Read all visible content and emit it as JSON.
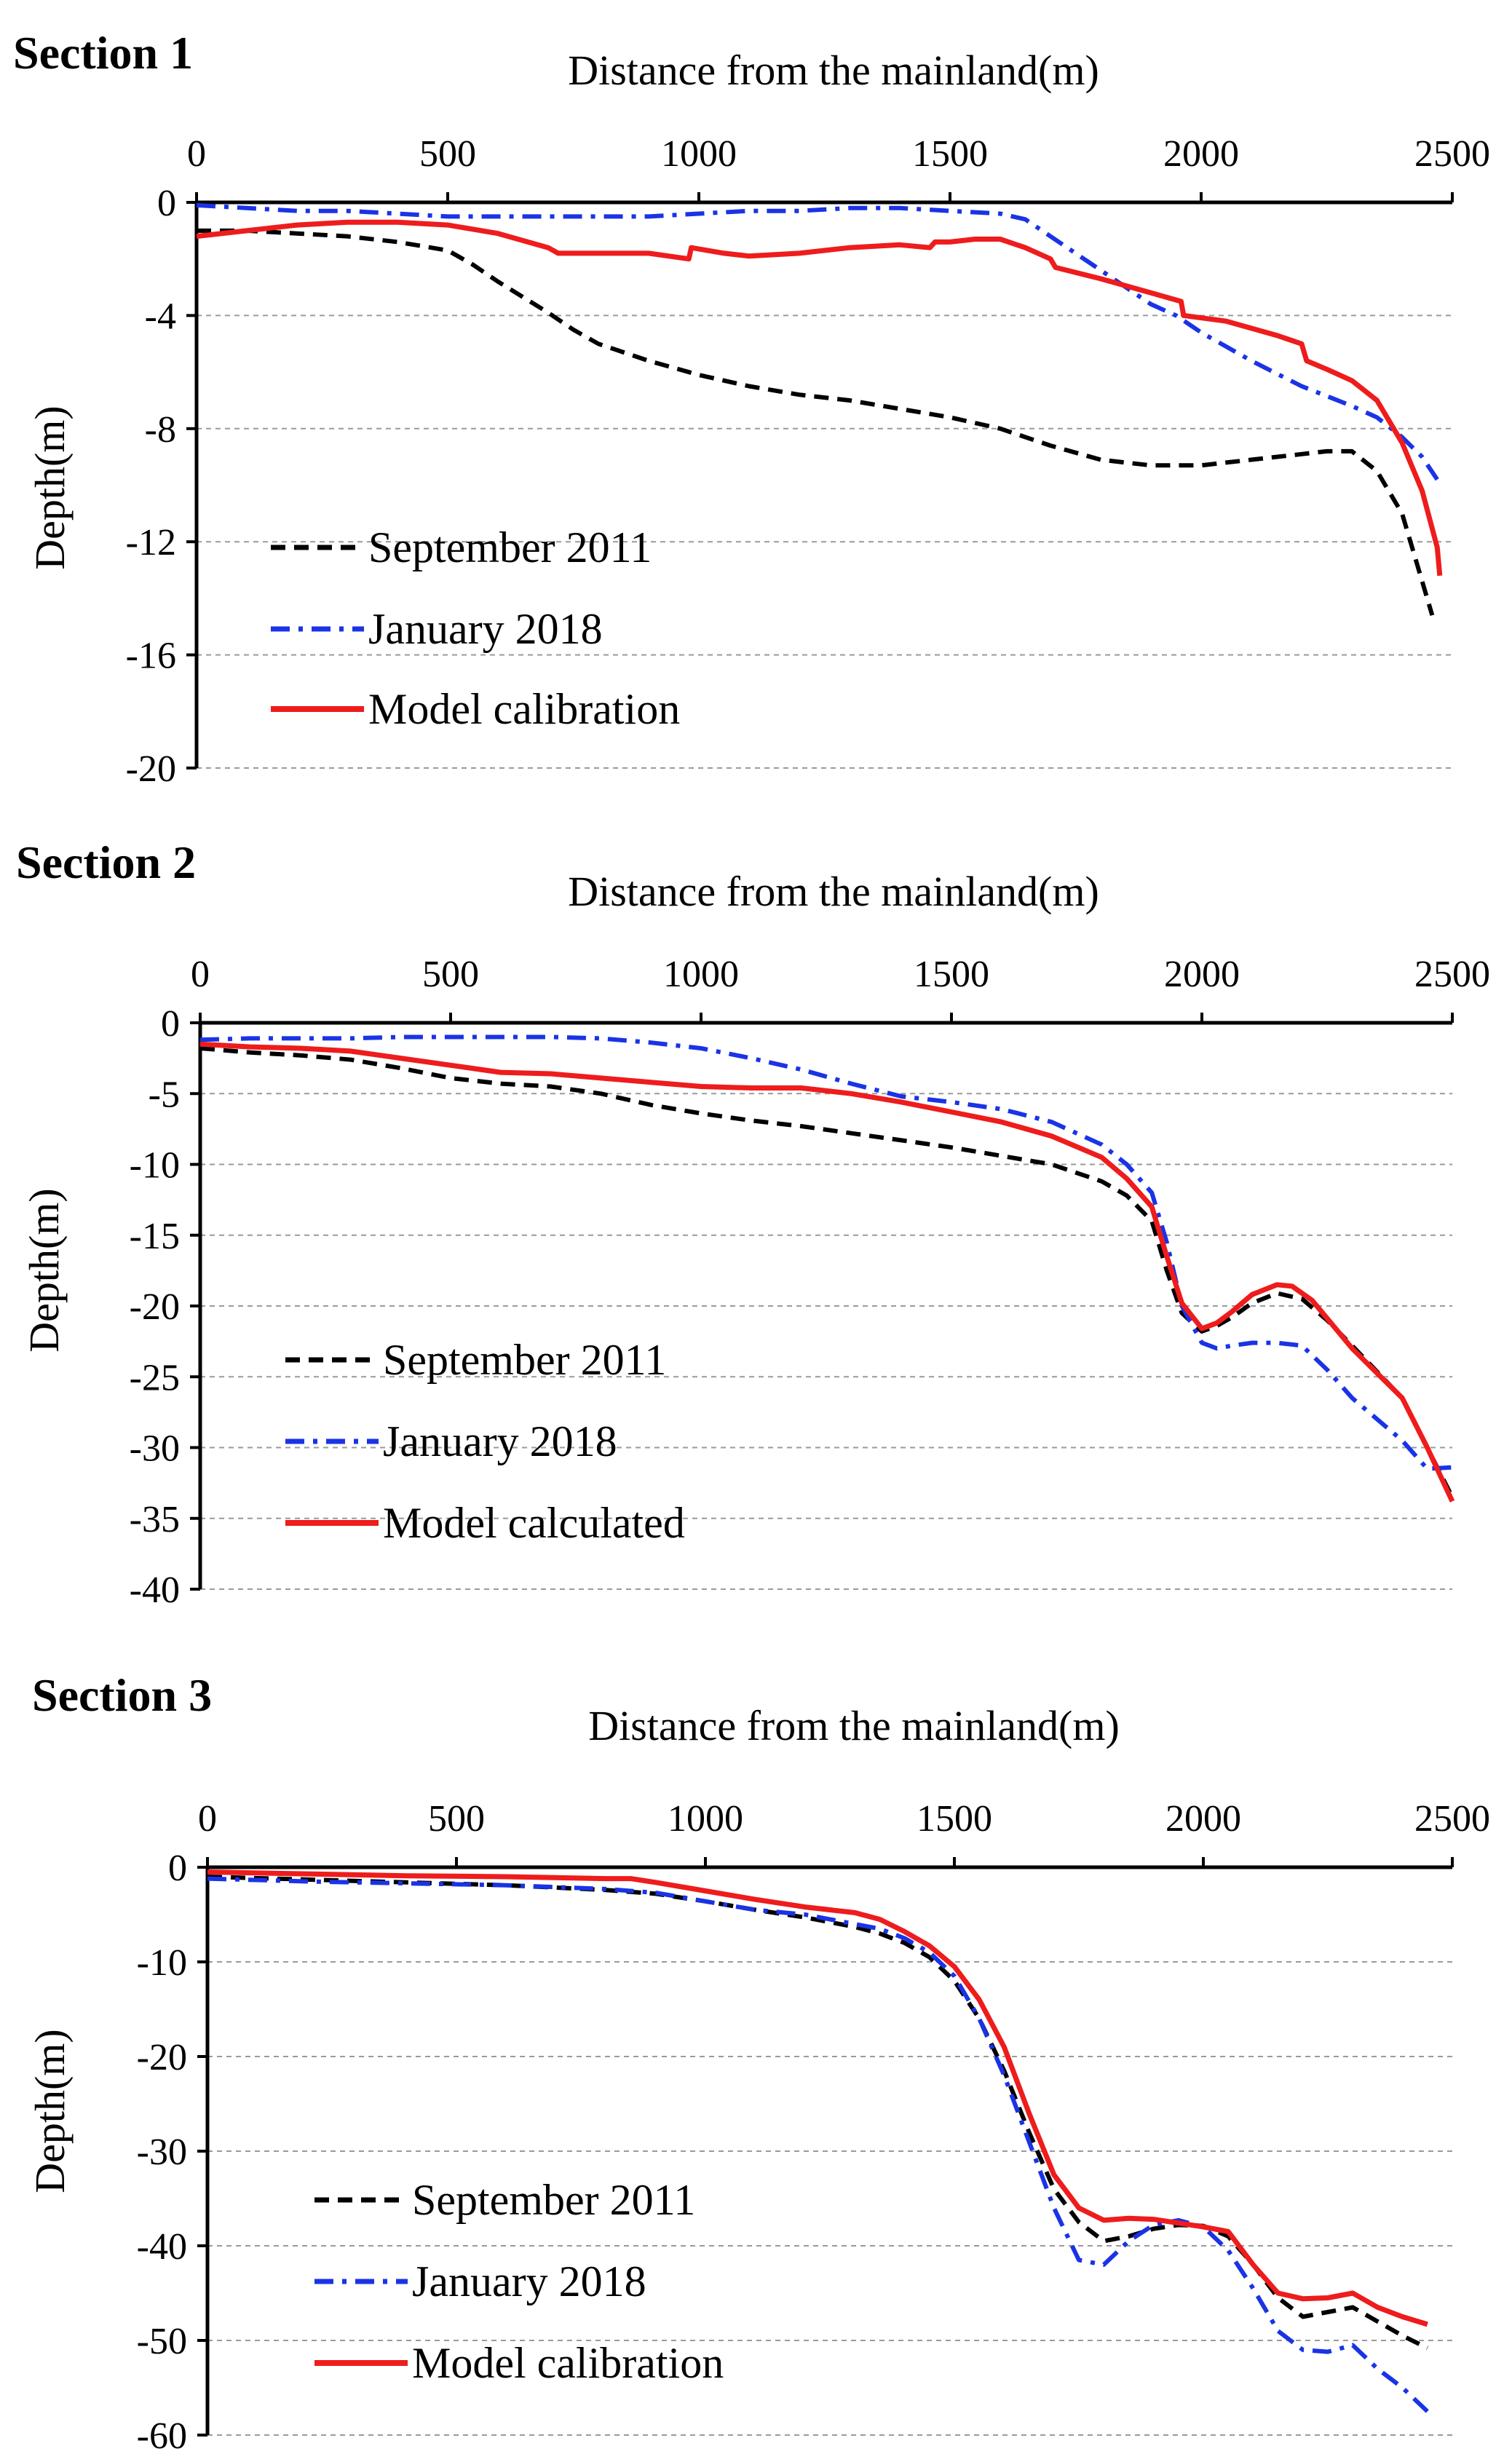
{
  "colors": {
    "september_2011": "#000000",
    "january_2018": "#1a33e6",
    "model": "#ee1c1c",
    "grid": "#9a9a9a",
    "axis": "#000000"
  },
  "chart_data": [
    {
      "type": "line",
      "section_title": "Section 1",
      "xlabel": "Distance  from the mainland(m)",
      "ylabel": "Depth(m)",
      "xlim": [
        0,
        2500
      ],
      "ylim": [
        -20,
        0
      ],
      "xticks": [
        "0",
        "500",
        "1000",
        "1500",
        "2000",
        "2500"
      ],
      "yticks": [
        "0",
        "-4",
        "-8",
        "-12",
        "-16",
        "-20"
      ],
      "legend_position": "bottom-left",
      "series": [
        {
          "name": "September 2011",
          "style": "dashed",
          "x": [
            0,
            100,
            200,
            300,
            400,
            500,
            550,
            600,
            700,
            750,
            800,
            900,
            1000,
            1100,
            1200,
            1300,
            1400,
            1500,
            1600,
            1700,
            1800,
            1900,
            2000,
            2100,
            2200,
            2250,
            2300,
            2350,
            2400,
            2430,
            2460
          ],
          "values": [
            -1.0,
            -1.0,
            -1.1,
            -1.2,
            -1.4,
            -1.7,
            -2.2,
            -2.8,
            -3.9,
            -4.5,
            -5.0,
            -5.6,
            -6.1,
            -6.5,
            -6.8,
            -7.0,
            -7.3,
            -7.6,
            -8.0,
            -8.6,
            -9.1,
            -9.3,
            -9.3,
            -9.1,
            -8.9,
            -8.8,
            -8.8,
            -9.5,
            -11.0,
            -12.8,
            -14.6
          ]
        },
        {
          "name": "January 2018",
          "style": "dashdot",
          "x": [
            0,
            100,
            200,
            300,
            400,
            500,
            600,
            700,
            800,
            900,
            1000,
            1100,
            1200,
            1300,
            1400,
            1500,
            1600,
            1650,
            1700,
            1800,
            1900,
            1950,
            2000,
            2100,
            2200,
            2300,
            2350,
            2400,
            2440,
            2470
          ],
          "values": [
            -0.1,
            -0.2,
            -0.3,
            -0.3,
            -0.4,
            -0.5,
            -0.5,
            -0.5,
            -0.5,
            -0.5,
            -0.4,
            -0.3,
            -0.3,
            -0.2,
            -0.2,
            -0.3,
            -0.4,
            -0.6,
            -1.2,
            -2.4,
            -3.6,
            -4.0,
            -4.6,
            -5.6,
            -6.5,
            -7.2,
            -7.6,
            -8.3,
            -9.0,
            -9.8
          ]
        },
        {
          "name": "Model calibration",
          "style": "solid",
          "x": [
            0,
            100,
            200,
            300,
            400,
            500,
            600,
            700,
            720,
            800,
            900,
            980,
            985,
            1050,
            1100,
            1200,
            1300,
            1400,
            1460,
            1470,
            1500,
            1550,
            1600,
            1650,
            1700,
            1710,
            1800,
            1900,
            1960,
            1965,
            2050,
            2150,
            2200,
            2210,
            2250,
            2300,
            2350,
            2400,
            2440,
            2470,
            2475
          ],
          "values": [
            -1.2,
            -1.0,
            -0.8,
            -0.7,
            -0.7,
            -0.8,
            -1.1,
            -1.6,
            -1.8,
            -1.8,
            -1.8,
            -2.0,
            -1.6,
            -1.8,
            -1.9,
            -1.8,
            -1.6,
            -1.5,
            -1.6,
            -1.4,
            -1.4,
            -1.3,
            -1.3,
            -1.6,
            -2.0,
            -2.3,
            -2.7,
            -3.2,
            -3.5,
            -4.0,
            -4.2,
            -4.7,
            -5.0,
            -5.6,
            -5.9,
            -6.3,
            -7.0,
            -8.5,
            -10.2,
            -12.2,
            -13.2
          ]
        }
      ]
    },
    {
      "type": "line",
      "section_title": "Section 2",
      "xlabel": "Distance  from the mainland(m)",
      "ylabel": "Depth(m)",
      "xlim": [
        0,
        2500
      ],
      "ylim": [
        -40,
        0
      ],
      "xticks": [
        "0",
        "500",
        "1000",
        "1500",
        "2000",
        "2500"
      ],
      "yticks": [
        "0",
        "-5",
        "-10",
        "-15",
        "-20",
        "-25",
        "-30",
        "-35",
        "-40"
      ],
      "legend_position": "bottom-left",
      "series": [
        {
          "name": "September 2011",
          "style": "dashed",
          "x": [
            0,
            100,
            200,
            300,
            400,
            500,
            600,
            700,
            800,
            900,
            1000,
            1100,
            1200,
            1300,
            1400,
            1500,
            1600,
            1700,
            1800,
            1850,
            1900,
            1930,
            1960,
            2000,
            2030,
            2060,
            2100,
            2150,
            2200,
            2250,
            2300,
            2400,
            2450,
            2500
          ],
          "values": [
            -1.8,
            -2.1,
            -2.3,
            -2.6,
            -3.2,
            -3.9,
            -4.3,
            -4.5,
            -5.0,
            -5.8,
            -6.4,
            -6.9,
            -7.3,
            -7.8,
            -8.3,
            -8.8,
            -9.4,
            -10.0,
            -11.2,
            -12.2,
            -14.0,
            -17.5,
            -20.5,
            -21.8,
            -21.4,
            -20.8,
            -19.8,
            -19.1,
            -19.5,
            -21.0,
            -22.8,
            -26.5,
            -30.0,
            -33.5
          ]
        },
        {
          "name": "January 2018",
          "style": "dashdot",
          "x": [
            0,
            100,
            200,
            300,
            400,
            500,
            600,
            700,
            800,
            900,
            1000,
            1100,
            1200,
            1300,
            1400,
            1500,
            1600,
            1700,
            1800,
            1850,
            1900,
            1930,
            1960,
            2000,
            2030,
            2060,
            2100,
            2150,
            2200,
            2250,
            2300,
            2400,
            2450,
            2500
          ],
          "values": [
            -1.2,
            -1.1,
            -1.1,
            -1.1,
            -1.0,
            -1.0,
            -1.0,
            -1.0,
            -1.1,
            -1.4,
            -1.8,
            -2.5,
            -3.3,
            -4.3,
            -5.2,
            -5.6,
            -6.1,
            -7.0,
            -8.6,
            -10.0,
            -12.0,
            -15.5,
            -20.0,
            -22.6,
            -23.0,
            -22.8,
            -22.6,
            -22.6,
            -22.8,
            -24.5,
            -26.5,
            -29.5,
            -31.5,
            -31.4
          ]
        },
        {
          "name": "Model calculated",
          "style": "solid",
          "x": [
            0,
            100,
            200,
            300,
            400,
            500,
            600,
            700,
            800,
            900,
            1000,
            1100,
            1200,
            1300,
            1400,
            1500,
            1600,
            1700,
            1800,
            1850,
            1900,
            1930,
            1960,
            2000,
            2030,
            2060,
            2100,
            2150,
            2180,
            2220,
            2300,
            2400,
            2450,
            2500
          ],
          "values": [
            -1.5,
            -1.7,
            -1.8,
            -2.0,
            -2.5,
            -3.0,
            -3.5,
            -3.6,
            -3.9,
            -4.2,
            -4.5,
            -4.6,
            -4.6,
            -5.0,
            -5.6,
            -6.3,
            -7.0,
            -8.0,
            -9.5,
            -11.0,
            -13.0,
            -16.5,
            -19.8,
            -21.6,
            -21.2,
            -20.4,
            -19.2,
            -18.5,
            -18.6,
            -19.6,
            -23.0,
            -26.5,
            -30.0,
            -33.8
          ]
        }
      ]
    },
    {
      "type": "line",
      "section_title": "Section 3",
      "xlabel": "Distance  from the mainland(m)",
      "ylabel": "Depth(m)",
      "xlim": [
        0,
        2500
      ],
      "ylim": [
        -60,
        0
      ],
      "xticks": [
        "0",
        "500",
        "1000",
        "1500",
        "2000",
        "2500"
      ],
      "yticks": [
        "0",
        "-10",
        "-20",
        "-30",
        "-40",
        "-50",
        "-60"
      ],
      "legend_position": "bottom-left",
      "series": [
        {
          "name": "September 2011",
          "style": "dashed",
          "x": [
            0,
            200,
            400,
            600,
            800,
            900,
            1000,
            1100,
            1200,
            1300,
            1350,
            1400,
            1450,
            1500,
            1550,
            1600,
            1650,
            1700,
            1750,
            1800,
            1850,
            1900,
            1950,
            2000,
            2050,
            2100,
            2150,
            2200,
            2250,
            2300,
            2350,
            2400,
            2450
          ],
          "values": [
            -1.0,
            -1.3,
            -1.6,
            -1.9,
            -2.4,
            -2.8,
            -3.6,
            -4.5,
            -5.3,
            -6.3,
            -7.0,
            -8.0,
            -9.5,
            -12.0,
            -16.0,
            -21.5,
            -28.0,
            -34.0,
            -37.5,
            -39.5,
            -39.0,
            -38.2,
            -37.8,
            -37.9,
            -39.0,
            -42.0,
            -45.5,
            -47.5,
            -47.0,
            -46.5,
            -48.0,
            -49.5,
            -50.8
          ]
        },
        {
          "name": "January 2018",
          "style": "dashdot",
          "x": [
            0,
            200,
            400,
            600,
            800,
            900,
            1000,
            1100,
            1200,
            1300,
            1350,
            1400,
            1450,
            1500,
            1550,
            1600,
            1650,
            1700,
            1750,
            1800,
            1850,
            1900,
            1950,
            2000,
            2050,
            2100,
            2150,
            2200,
            2250,
            2300,
            2350,
            2400,
            2450
          ],
          "values": [
            -1.2,
            -1.5,
            -1.7,
            -1.9,
            -2.3,
            -2.7,
            -3.6,
            -4.5,
            -5.0,
            -6.0,
            -6.5,
            -7.5,
            -9.0,
            -11.5,
            -16.0,
            -22.0,
            -29.0,
            -36.0,
            -41.5,
            -42.0,
            -39.5,
            -37.8,
            -37.3,
            -38.0,
            -40.5,
            -44.5,
            -49.0,
            -51.0,
            -51.2,
            -50.5,
            -53.0,
            -55.0,
            -57.5
          ]
        },
        {
          "name": "Model calibration",
          "style": "solid",
          "x": [
            0,
            200,
            400,
            600,
            800,
            850,
            900,
            1000,
            1100,
            1200,
            1300,
            1350,
            1400,
            1450,
            1500,
            1550,
            1600,
            1650,
            1700,
            1750,
            1800,
            1850,
            1900,
            1950,
            2000,
            2050,
            2100,
            2150,
            2200,
            2250,
            2300,
            2350,
            2400,
            2450
          ],
          "values": [
            -0.5,
            -0.7,
            -0.9,
            -1.0,
            -1.2,
            -1.2,
            -1.6,
            -2.5,
            -3.4,
            -4.2,
            -4.8,
            -5.5,
            -6.8,
            -8.3,
            -10.5,
            -14.0,
            -19.0,
            -26.0,
            -32.5,
            -36.0,
            -37.3,
            -37.1,
            -37.2,
            -37.6,
            -38.0,
            -38.5,
            -42.0,
            -45.0,
            -45.6,
            -45.5,
            -45.0,
            -46.5,
            -47.5,
            -48.3
          ]
        }
      ]
    }
  ]
}
